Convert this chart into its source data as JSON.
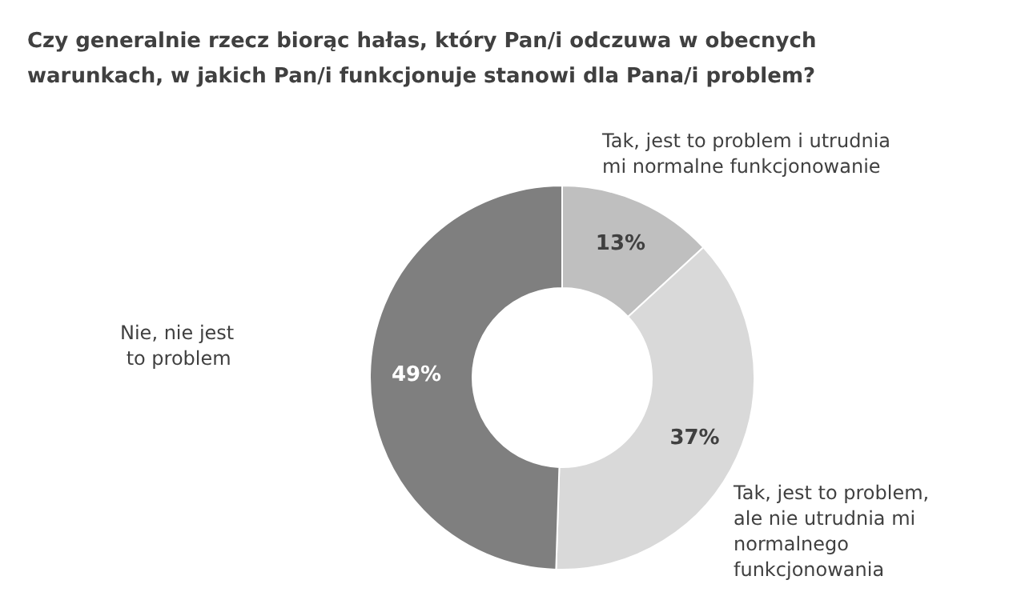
{
  "chart_data": {
    "type": "donut",
    "title": "Czy generalnie rzecz biorąc hałas, który Pan/i odczuwa w obecnych warunkach, w jakich Pan/i funkcjonuje stanowi dla Pana/i problem?",
    "categories": [
      "Tak, jest to problem i utrudnia mi normalne funkcjonowanie",
      "Tak, jest to problem, ale nie utrudnia mi normalnego funkcjonowania",
      "Nie, nie jest to problem"
    ],
    "values": [
      13,
      37,
      49
    ],
    "colors": [
      "#bfbfbf",
      "#d9d9d9",
      "#7f7f7f"
    ],
    "value_labels": [
      "13%",
      "37%",
      "49%"
    ],
    "legend": false
  }
}
